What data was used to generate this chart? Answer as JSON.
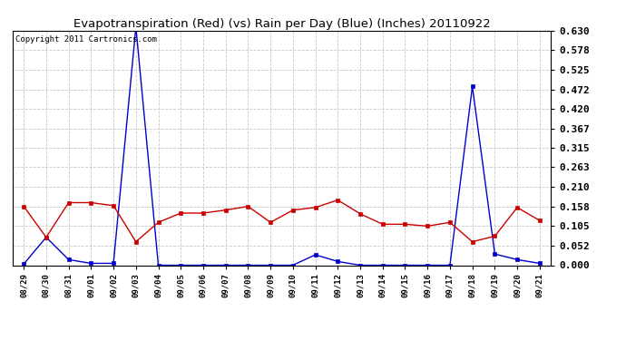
{
  "title": "Evapotranspiration (Red) (vs) Rain per Day (Blue) (Inches) 20110922",
  "copyright": "Copyright 2011 Cartronics.com",
  "x_labels": [
    "08/29",
    "08/30",
    "08/31",
    "09/01",
    "09/02",
    "09/03",
    "09/04",
    "09/05",
    "09/06",
    "09/07",
    "09/08",
    "09/09",
    "09/10",
    "09/11",
    "09/12",
    "09/13",
    "09/14",
    "09/15",
    "09/16",
    "09/17",
    "09/18",
    "09/19",
    "09/20",
    "09/21"
  ],
  "red_values": [
    0.158,
    0.075,
    0.168,
    0.168,
    0.16,
    0.063,
    0.115,
    0.14,
    0.14,
    0.148,
    0.158,
    0.115,
    0.148,
    0.155,
    0.175,
    0.138,
    0.11,
    0.11,
    0.105,
    0.115,
    0.063,
    0.078,
    0.155,
    0.12
  ],
  "blue_values": [
    0.003,
    0.075,
    0.015,
    0.005,
    0.005,
    0.64,
    0.0,
    0.0,
    0.0,
    0.0,
    0.0,
    0.0,
    0.0,
    0.028,
    0.01,
    0.0,
    0.0,
    0.0,
    0.0,
    0.0,
    0.48,
    0.03,
    0.015,
    0.005
  ],
  "y_ticks": [
    0.0,
    0.052,
    0.105,
    0.158,
    0.21,
    0.263,
    0.315,
    0.367,
    0.42,
    0.472,
    0.525,
    0.578,
    0.63
  ],
  "ylim": [
    0.0,
    0.63
  ],
  "background_color": "#ffffff",
  "grid_color": "#c8c8c8",
  "red_color": "#cc0000",
  "blue_color": "#0000cc",
  "title_fontsize": 9.5,
  "copyright_fontsize": 6.5,
  "ytick_fontsize": 8,
  "xtick_fontsize": 6.5
}
